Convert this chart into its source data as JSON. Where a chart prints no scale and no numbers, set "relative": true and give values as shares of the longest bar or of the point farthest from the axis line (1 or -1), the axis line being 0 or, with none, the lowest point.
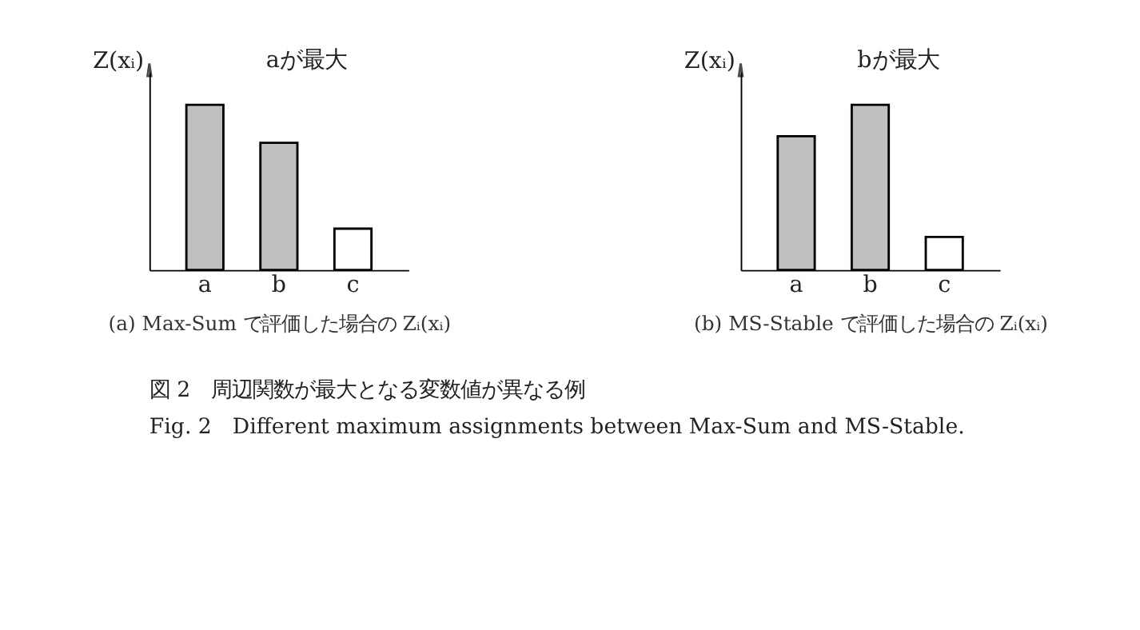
{
  "chart_data": [
    {
      "type": "bar",
      "relative": true,
      "ylabel": "Z(xᵢ)",
      "xlabel": "(a) Max-Sum で評価した場合の Zᵢ(xᵢ)",
      "categories": [
        "a",
        "b",
        "c"
      ],
      "values": [
        1,
        0.77,
        0.25
      ],
      "colors": [
        "#c0c0c0",
        "#c0c0c0",
        "#ffffff"
      ],
      "annotations": [
        "aが最大"
      ]
    },
    {
      "type": "bar",
      "relative": true,
      "ylabel": "Z(xᵢ)",
      "xlabel": "(b) MS-Stable で評価した場合の Zᵢ(xᵢ)",
      "categories": [
        "a",
        "b",
        "c"
      ],
      "values": [
        0.81,
        1,
        0.2
      ],
      "colors": [
        "#c0c0c0",
        "#c0c0c0",
        "#ffffff"
      ],
      "annotations": [
        "bが最大",
        "図 2　周辺関数が最大となる変数値が異なる例",
        "Fig. 2　Different maximum assignments between Max-Sum and MS-Stable."
      ]
    }
  ]
}
